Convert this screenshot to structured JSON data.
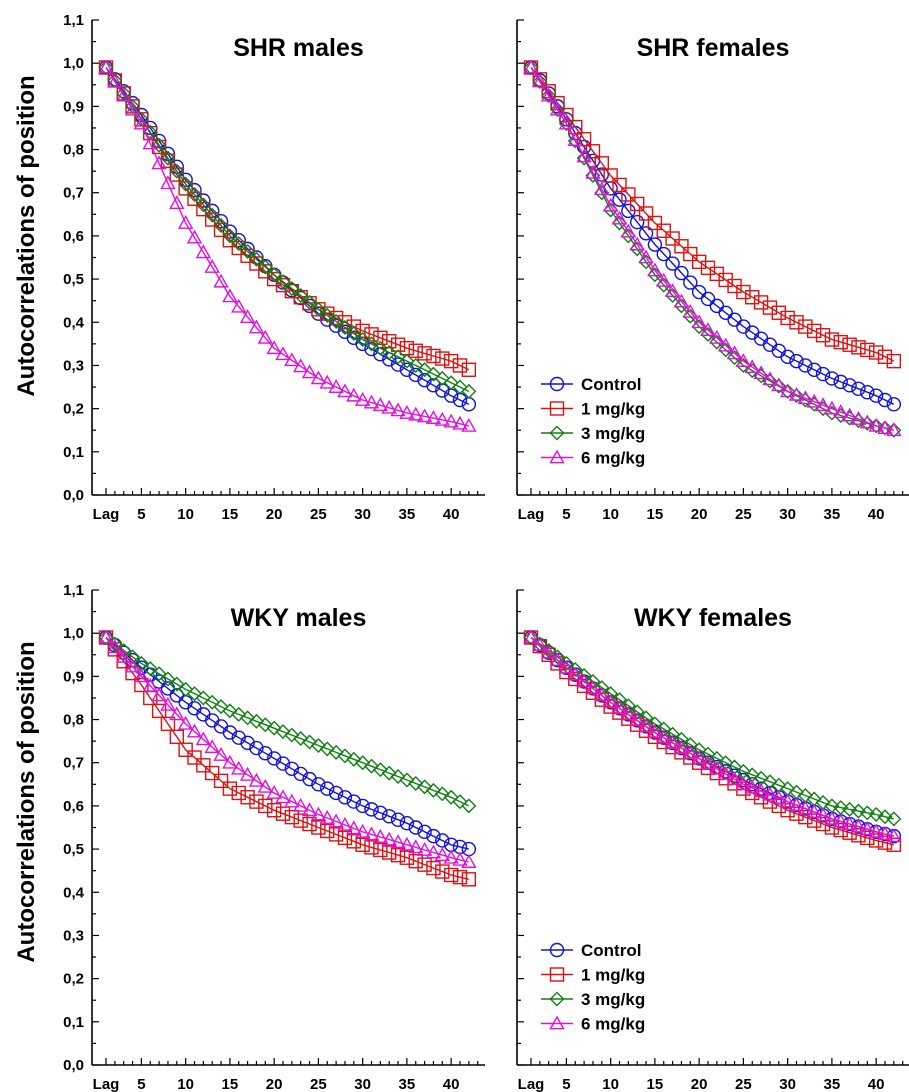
{
  "figure": {
    "y_axis_label": "Autocorrelations of position"
  },
  "legend": {
    "entries": [
      {
        "label": "Control",
        "color": "#1010e0",
        "marker": "circle"
      },
      {
        "label": "1 mg/kg",
        "color": "#e01010",
        "marker": "square"
      },
      {
        "label": "3 mg/kg",
        "color": "#108010",
        "marker": "diamond"
      },
      {
        "label": "6 mg/kg",
        "color": "#e010e0",
        "marker": "triangle"
      }
    ]
  },
  "chart_data": [
    {
      "type": "line",
      "title": "SHR males",
      "xlabel": "",
      "ylabel": "Autocorrelations of position",
      "x_range": [
        1,
        42
      ],
      "ylim": [
        0,
        1.1
      ],
      "y_ticks": [
        "0,0",
        "0,1",
        "0,2",
        "0,3",
        "0,4",
        "0,5",
        "0,6",
        "0,7",
        "0,8",
        "0,9",
        "1,0",
        "1,1"
      ],
      "x_ticks": [
        "Lag",
        "5",
        "10",
        "15",
        "20",
        "25",
        "30",
        "35",
        "40"
      ],
      "legend": "none",
      "series": [
        {
          "name": "Control",
          "anchors": [
            [
              1,
              0.99
            ],
            [
              5,
              0.88
            ],
            [
              10,
              0.73
            ],
            [
              15,
              0.61
            ],
            [
              20,
              0.51
            ],
            [
              25,
              0.42
            ],
            [
              30,
              0.35
            ],
            [
              35,
              0.29
            ],
            [
              40,
              0.23
            ],
            [
              42,
              0.21
            ]
          ]
        },
        {
          "name": "1 mg/kg",
          "anchors": [
            [
              1,
              0.99
            ],
            [
              5,
              0.87
            ],
            [
              10,
              0.71
            ],
            [
              15,
              0.59
            ],
            [
              20,
              0.5
            ],
            [
              25,
              0.43
            ],
            [
              30,
              0.38
            ],
            [
              35,
              0.34
            ],
            [
              40,
              0.31
            ],
            [
              42,
              0.29
            ]
          ]
        },
        {
          "name": "3 mg/kg",
          "anchors": [
            [
              1,
              0.99
            ],
            [
              5,
              0.87
            ],
            [
              10,
              0.72
            ],
            [
              15,
              0.6
            ],
            [
              20,
              0.51
            ],
            [
              25,
              0.43
            ],
            [
              30,
              0.36
            ],
            [
              35,
              0.31
            ],
            [
              40,
              0.26
            ],
            [
              42,
              0.24
            ]
          ]
        },
        {
          "name": "6 mg/kg",
          "anchors": [
            [
              1,
              0.99
            ],
            [
              5,
              0.86
            ],
            [
              10,
              0.63
            ],
            [
              15,
              0.46
            ],
            [
              20,
              0.34
            ],
            [
              25,
              0.27
            ],
            [
              30,
              0.22
            ],
            [
              35,
              0.19
            ],
            [
              40,
              0.17
            ],
            [
              42,
              0.16
            ]
          ]
        }
      ]
    },
    {
      "type": "line",
      "title": "SHR females",
      "xlabel": "",
      "ylabel": "",
      "x_range": [
        1,
        42
      ],
      "ylim": [
        0,
        1.1
      ],
      "x_ticks": [
        "Lag",
        "5",
        "10",
        "15",
        "20",
        "25",
        "30",
        "35",
        "40"
      ],
      "legend": "bottom-left",
      "series": [
        {
          "name": "Control",
          "anchors": [
            [
              1,
              0.99
            ],
            [
              5,
              0.87
            ],
            [
              10,
              0.71
            ],
            [
              15,
              0.58
            ],
            [
              20,
              0.47
            ],
            [
              25,
              0.39
            ],
            [
              30,
              0.32
            ],
            [
              35,
              0.27
            ],
            [
              40,
              0.23
            ],
            [
              42,
              0.21
            ]
          ]
        },
        {
          "name": "1 mg/kg",
          "anchors": [
            [
              1,
              0.99
            ],
            [
              5,
              0.88
            ],
            [
              10,
              0.74
            ],
            [
              15,
              0.63
            ],
            [
              20,
              0.54
            ],
            [
              25,
              0.47
            ],
            [
              30,
              0.41
            ],
            [
              35,
              0.36
            ],
            [
              40,
              0.33
            ],
            [
              42,
              0.31
            ]
          ]
        },
        {
          "name": "3 mg/kg",
          "anchors": [
            [
              1,
              0.99
            ],
            [
              5,
              0.86
            ],
            [
              10,
              0.66
            ],
            [
              15,
              0.51
            ],
            [
              20,
              0.39
            ],
            [
              25,
              0.3
            ],
            [
              30,
              0.24
            ],
            [
              35,
              0.19
            ],
            [
              40,
              0.16
            ],
            [
              42,
              0.15
            ]
          ]
        },
        {
          "name": "6 mg/kg",
          "anchors": [
            [
              1,
              0.99
            ],
            [
              5,
              0.86
            ],
            [
              10,
              0.67
            ],
            [
              15,
              0.52
            ],
            [
              20,
              0.4
            ],
            [
              25,
              0.31
            ],
            [
              30,
              0.24
            ],
            [
              35,
              0.2
            ],
            [
              40,
              0.16
            ],
            [
              42,
              0.15
            ]
          ]
        }
      ]
    },
    {
      "type": "line",
      "title": "WKY males",
      "xlabel": "",
      "ylabel": "Autocorrelations of position",
      "x_range": [
        1,
        42
      ],
      "ylim": [
        0,
        1.1
      ],
      "y_ticks": [
        "0,0",
        "0,1",
        "0,2",
        "0,3",
        "0,4",
        "0,5",
        "0,6",
        "0,7",
        "0,8",
        "0,9",
        "1,0",
        "1,1"
      ],
      "x_ticks": [
        "Lag",
        "5",
        "10",
        "15",
        "20",
        "25",
        "30",
        "35",
        "40"
      ],
      "legend": "none",
      "series": [
        {
          "name": "Control",
          "anchors": [
            [
              1,
              0.99
            ],
            [
              5,
              0.92
            ],
            [
              10,
              0.84
            ],
            [
              15,
              0.77
            ],
            [
              20,
              0.71
            ],
            [
              25,
              0.65
            ],
            [
              30,
              0.6
            ],
            [
              35,
              0.56
            ],
            [
              40,
              0.51
            ],
            [
              42,
              0.5
            ]
          ]
        },
        {
          "name": "1 mg/kg",
          "anchors": [
            [
              1,
              0.99
            ],
            [
              5,
              0.88
            ],
            [
              10,
              0.73
            ],
            [
              15,
              0.64
            ],
            [
              20,
              0.59
            ],
            [
              25,
              0.55
            ],
            [
              30,
              0.51
            ],
            [
              35,
              0.48
            ],
            [
              40,
              0.44
            ],
            [
              42,
              0.43
            ]
          ]
        },
        {
          "name": "3 mg/kg",
          "anchors": [
            [
              1,
              0.99
            ],
            [
              5,
              0.93
            ],
            [
              10,
              0.87
            ],
            [
              15,
              0.82
            ],
            [
              20,
              0.78
            ],
            [
              25,
              0.74
            ],
            [
              30,
              0.7
            ],
            [
              35,
              0.66
            ],
            [
              40,
              0.62
            ],
            [
              42,
              0.6
            ]
          ]
        },
        {
          "name": "6 mg/kg",
          "anchors": [
            [
              1,
              0.99
            ],
            [
              5,
              0.9
            ],
            [
              10,
              0.79
            ],
            [
              15,
              0.7
            ],
            [
              20,
              0.63
            ],
            [
              25,
              0.58
            ],
            [
              30,
              0.54
            ],
            [
              35,
              0.51
            ],
            [
              40,
              0.48
            ],
            [
              42,
              0.47
            ]
          ]
        }
      ]
    },
    {
      "type": "line",
      "title": "WKY females",
      "xlabel": "",
      "ylabel": "",
      "x_range": [
        1,
        42
      ],
      "ylim": [
        0,
        1.1
      ],
      "x_ticks": [
        "Lag",
        "5",
        "10",
        "15",
        "20",
        "25",
        "30",
        "35",
        "40"
      ],
      "legend": "bottom-left",
      "series": [
        {
          "name": "Control",
          "anchors": [
            [
              1,
              0.99
            ],
            [
              5,
              0.92
            ],
            [
              10,
              0.84
            ],
            [
              15,
              0.77
            ],
            [
              20,
              0.71
            ],
            [
              25,
              0.66
            ],
            [
              30,
              0.61
            ],
            [
              35,
              0.57
            ],
            [
              40,
              0.54
            ],
            [
              42,
              0.53
            ]
          ]
        },
        {
          "name": "1 mg/kg",
          "anchors": [
            [
              1,
              0.99
            ],
            [
              5,
              0.91
            ],
            [
              10,
              0.83
            ],
            [
              15,
              0.76
            ],
            [
              20,
              0.7
            ],
            [
              25,
              0.64
            ],
            [
              30,
              0.59
            ],
            [
              35,
              0.55
            ],
            [
              40,
              0.52
            ],
            [
              42,
              0.51
            ]
          ]
        },
        {
          "name": "3 mg/kg",
          "anchors": [
            [
              1,
              0.99
            ],
            [
              5,
              0.93
            ],
            [
              10,
              0.86
            ],
            [
              15,
              0.79
            ],
            [
              20,
              0.73
            ],
            [
              25,
              0.68
            ],
            [
              30,
              0.64
            ],
            [
              35,
              0.6
            ],
            [
              40,
              0.58
            ],
            [
              42,
              0.57
            ]
          ]
        },
        {
          "name": "6 mg/kg",
          "anchors": [
            [
              1,
              0.99
            ],
            [
              5,
              0.92
            ],
            [
              10,
              0.84
            ],
            [
              15,
              0.77
            ],
            [
              20,
              0.71
            ],
            [
              25,
              0.65
            ],
            [
              30,
              0.61
            ],
            [
              35,
              0.57
            ],
            [
              40,
              0.54
            ],
            [
              42,
              0.53
            ]
          ]
        }
      ]
    }
  ]
}
